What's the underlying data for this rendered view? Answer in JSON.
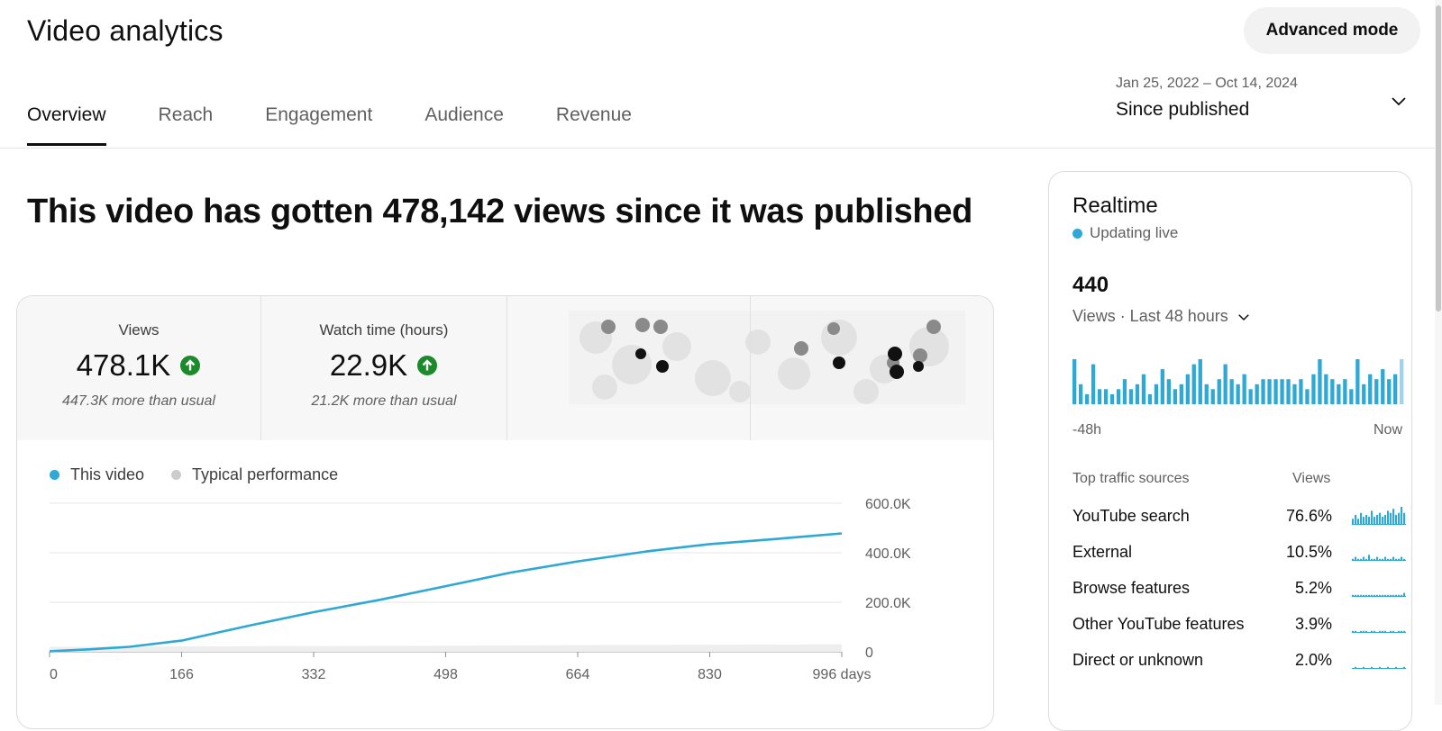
{
  "header": {
    "title": "Video analytics",
    "advanced_mode_label": "Advanced mode",
    "tabs": [
      {
        "label": "Overview"
      },
      {
        "label": "Reach"
      },
      {
        "label": "Engagement"
      },
      {
        "label": "Audience"
      },
      {
        "label": "Revenue"
      }
    ],
    "active_tab": "Overview",
    "date_range": "Jan 25, 2022 – Oct 14, 2024",
    "date_label": "Since published",
    "icons": {
      "date_dropdown": "chevron-down-icon"
    }
  },
  "overview": {
    "headline": "This video has gotten 478,142 views since it was published",
    "metrics": [
      {
        "label": "Views",
        "value": "478.1K",
        "sub": "447.3K more than usual",
        "trend": "up",
        "icon": "arrow-up-circle-icon"
      },
      {
        "label": "Watch time (hours)",
        "value": "22.9K",
        "sub": "21.2K more than usual",
        "trend": "up",
        "icon": "arrow-up-circle-icon"
      }
    ],
    "legend": [
      {
        "label": "This video",
        "color": "#2ea8d4"
      },
      {
        "label": "Typical performance",
        "color": "#cccccc"
      }
    ]
  },
  "chart_data": [
    {
      "type": "line",
      "title": "",
      "xlabel": "",
      "ylabel": "",
      "x_tick_labels": [
        "0",
        "166",
        "332",
        "498",
        "664",
        "830",
        "996 days"
      ],
      "x_ticks": [
        0,
        166,
        332,
        498,
        664,
        830,
        996
      ],
      "y_tick_labels": [
        "0",
        "200.0K",
        "400.0K",
        "600.0K"
      ],
      "y_ticks": [
        0,
        200000,
        400000,
        600000
      ],
      "xlim": [
        0,
        996
      ],
      "ylim": [
        0,
        600000
      ],
      "grid": true,
      "legend_position": "top-left",
      "series": [
        {
          "name": "This video",
          "color": "#2ea8d4",
          "x": [
            0,
            50,
            100,
            166,
            250,
            332,
            415,
            498,
            580,
            664,
            750,
            830,
            910,
            996
          ],
          "values": [
            2000,
            10000,
            20000,
            45000,
            105000,
            160000,
            210000,
            265000,
            320000,
            365000,
            405000,
            435000,
            455000,
            478142
          ]
        },
        {
          "name": "Typical performance",
          "color": "#cccccc",
          "x": [
            0,
            996
          ],
          "values": [
            20000,
            30000
          ]
        }
      ]
    },
    {
      "type": "bar",
      "title": "",
      "xlabel": "",
      "ylabel": "",
      "x_tick_labels": [
        "-48h",
        "Now"
      ],
      "color": "#2ea8d4",
      "values": [
        9,
        4,
        2,
        8,
        3,
        3,
        2,
        3,
        5,
        3,
        4,
        6,
        2,
        4,
        7,
        5,
        3,
        4,
        6,
        8,
        9,
        4,
        3,
        5,
        8,
        5,
        4,
        6,
        3,
        4,
        5,
        5,
        5,
        5,
        5,
        4,
        5,
        3,
        6,
        9,
        6,
        5,
        4,
        5,
        3,
        9,
        4,
        6,
        5,
        7,
        5,
        6,
        9
      ]
    }
  ],
  "realtime": {
    "title": "Realtime",
    "status": "Updating live",
    "status_color": "#2ea8d4",
    "count": "440",
    "period": "Views · Last 48 hours",
    "axis_start": "-48h",
    "axis_end": "Now",
    "traffic_header": "Top traffic sources",
    "traffic_views_header": "Views",
    "sources": [
      {
        "name": "YouTube search",
        "pct": "76.6%",
        "spark": [
          3,
          5,
          3,
          6,
          4,
          5,
          4,
          7,
          4,
          5,
          6,
          4,
          5,
          7,
          6,
          8,
          5,
          6,
          9,
          6
        ]
      },
      {
        "name": "External",
        "pct": "10.5%",
        "spark": [
          1,
          2,
          1,
          1,
          2,
          1,
          3,
          1,
          1,
          2,
          1,
          1,
          2,
          1,
          1,
          2,
          1,
          1,
          2,
          1
        ]
      },
      {
        "name": "Browse features",
        "pct": "5.2%",
        "spark": [
          1,
          1,
          1,
          1,
          1,
          1,
          1,
          1,
          1,
          1,
          1,
          1,
          1,
          1,
          1,
          1,
          1,
          1,
          1,
          2
        ]
      },
      {
        "name": "Other YouTube features",
        "pct": "3.9%",
        "spark": [
          1,
          1,
          0,
          1,
          1,
          1,
          0,
          1,
          1,
          0,
          1,
          1,
          1,
          0,
          1,
          1,
          0,
          1,
          1,
          1
        ]
      },
      {
        "name": "Direct or unknown",
        "pct": "2.0%",
        "spark": [
          0,
          1,
          0,
          0,
          1,
          0,
          0,
          1,
          0,
          0,
          1,
          0,
          0,
          1,
          0,
          0,
          1,
          0,
          0,
          1
        ]
      }
    ]
  }
}
